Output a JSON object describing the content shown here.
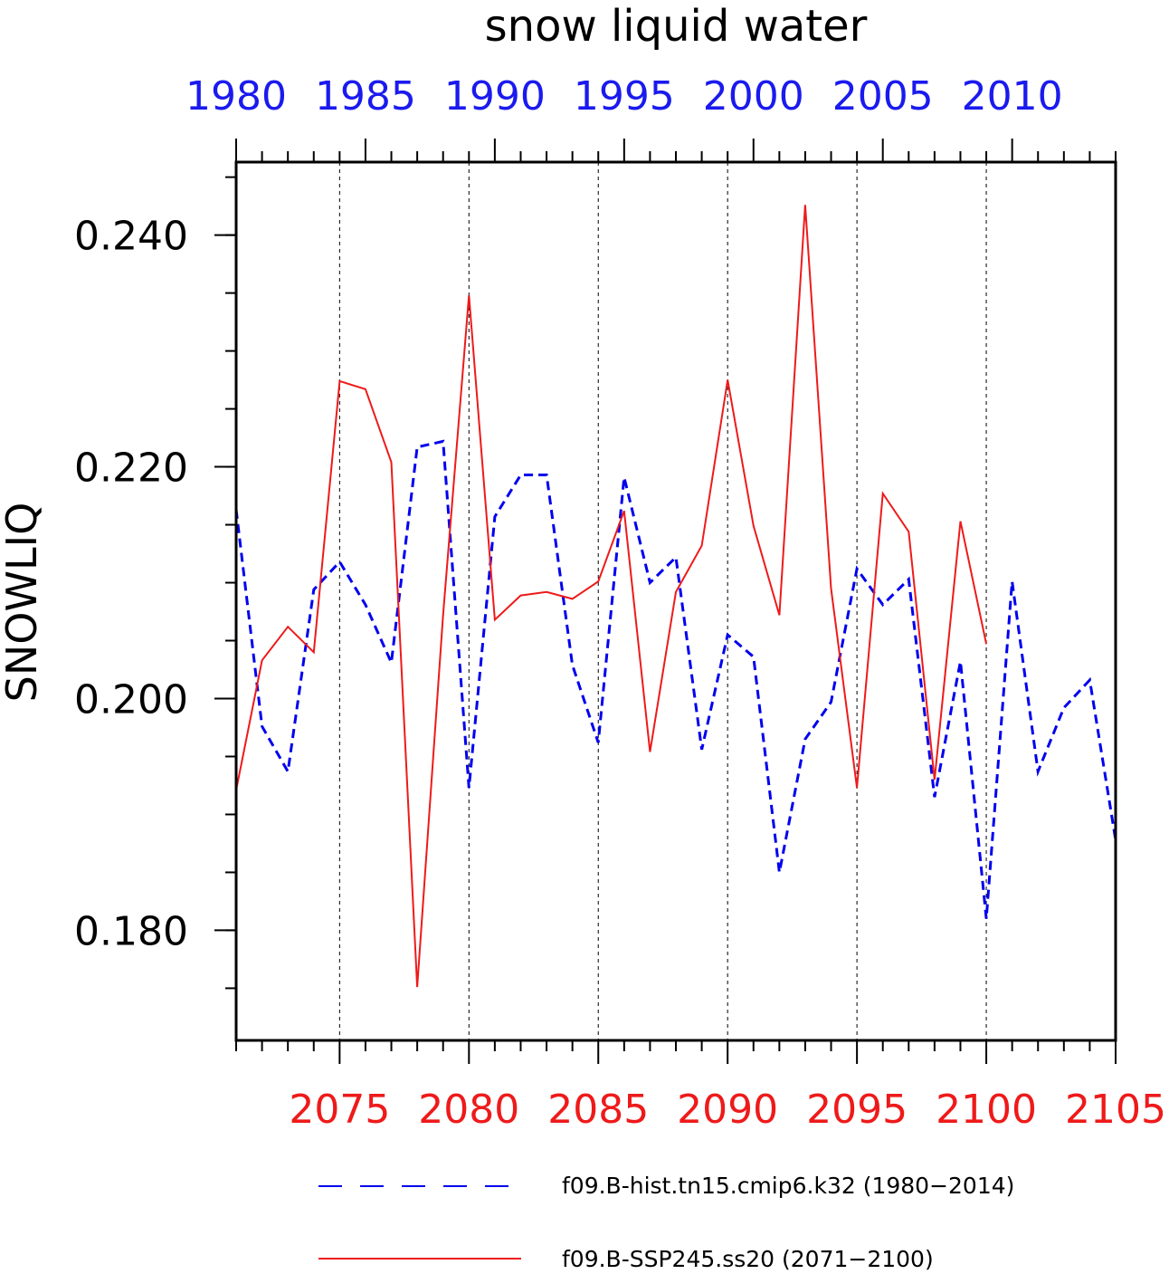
{
  "chart_data": {
    "type": "line",
    "title": "snow liquid water",
    "ylabel": "SNOWLIQ",
    "ylim": [
      0.1705,
      0.2463
    ],
    "y_ticks": [
      "0.180",
      "0.200",
      "0.220",
      "0.240"
    ],
    "y_tick_values": [
      0.18,
      0.2,
      0.22,
      0.24
    ],
    "y_minor_step": 0.005,
    "grid": "vertical dashed at major bottom ticks",
    "legend_placement": "bottom",
    "top_axis": {
      "xlim": [
        1980,
        2014
      ],
      "tick_labels": [
        "1980",
        "1985",
        "1990",
        "1995",
        "2000",
        "2005",
        "2010"
      ],
      "tick_values": [
        1980,
        1985,
        1990,
        1995,
        2000,
        2005,
        2010
      ],
      "color": "#1a1aee"
    },
    "bottom_axis": {
      "xlim": [
        2071,
        2105
      ],
      "tick_labels": [
        "2075",
        "2080",
        "2085",
        "2090",
        "2095",
        "2100",
        "2105"
      ],
      "tick_values": [
        2075,
        2080,
        2085,
        2090,
        2095,
        2100,
        2105
      ],
      "color": "#ee1a1a"
    },
    "series": [
      {
        "name": "f09.B-hist.tn15.cmip6.k32 (1980−2014)",
        "axis": "top",
        "color": "#0000ee",
        "style": "dashed",
        "x": [
          1980,
          1981,
          1982,
          1983,
          1984,
          1985,
          1986,
          1987,
          1988,
          1989,
          1990,
          1991,
          1992,
          1993,
          1994,
          1995,
          1996,
          1997,
          1998,
          1999,
          2000,
          2001,
          2002,
          2003,
          2004,
          2005,
          2006,
          2007,
          2008,
          2009,
          2010,
          2011,
          2012,
          2013,
          2014
        ],
        "values": [
          0.2163,
          0.1976,
          0.1937,
          0.2094,
          0.2118,
          0.2081,
          0.2031,
          0.2217,
          0.2222,
          0.1923,
          0.2157,
          0.2193,
          0.2193,
          0.2029,
          0.1962,
          0.2191,
          0.21,
          0.2122,
          0.1956,
          0.2055,
          0.2036,
          0.185,
          0.1965,
          0.1997,
          0.2112,
          0.2081,
          0.2103,
          0.1915,
          0.2032,
          0.181,
          0.2101,
          0.1937,
          0.1992,
          0.2016,
          0.1878
        ]
      },
      {
        "name": "f09.B-SSP245.ss20 (2071−2100)",
        "axis": "bottom",
        "color": "#ee1a1a",
        "style": "solid",
        "x": [
          2071,
          2072,
          2073,
          2074,
          2075,
          2076,
          2077,
          2078,
          2079,
          2080,
          2081,
          2082,
          2083,
          2084,
          2085,
          2086,
          2087,
          2088,
          2089,
          2090,
          2091,
          2092,
          2093,
          2094,
          2095,
          2096,
          2097,
          2098,
          2099,
          2100
        ],
        "values": [
          0.1921,
          0.2033,
          0.2062,
          0.204,
          0.2274,
          0.2267,
          0.2204,
          0.1751,
          0.2072,
          0.2348,
          0.2068,
          0.2089,
          0.2092,
          0.2086,
          0.2101,
          0.2162,
          0.1954,
          0.2092,
          0.2132,
          0.2275,
          0.2149,
          0.2072,
          0.2426,
          0.2095,
          0.1923,
          0.2177,
          0.2144,
          0.193,
          0.2153,
          0.2047
        ]
      }
    ]
  }
}
